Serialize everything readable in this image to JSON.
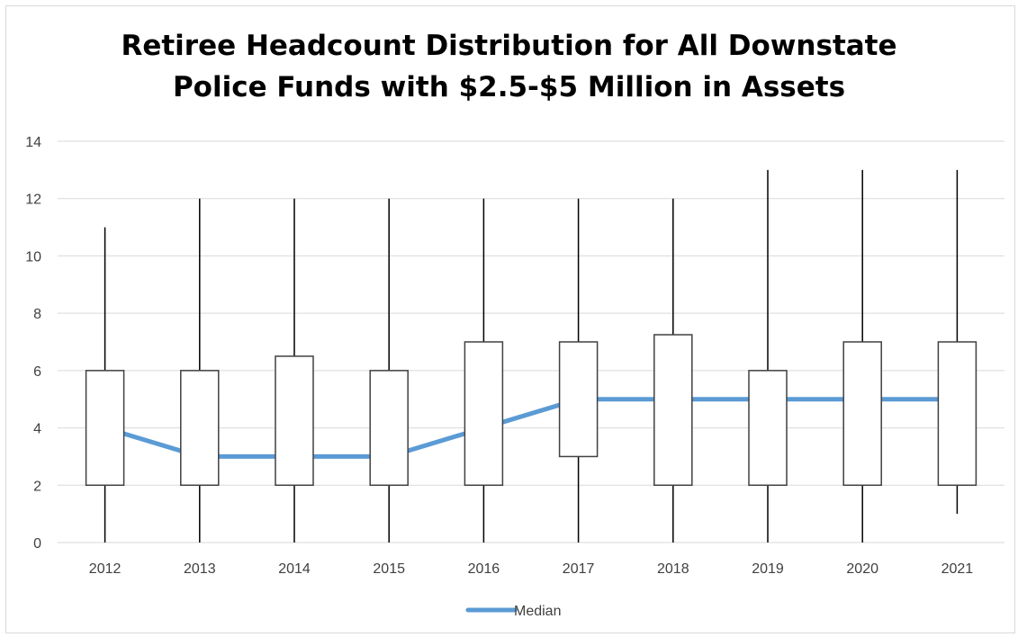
{
  "chart_data": {
    "type": "box",
    "title_lines": [
      "Retiree Headcount Distribution for All Downstate",
      "Police Funds with $2.5-$5 Million in Assets"
    ],
    "categories": [
      "2012",
      "2013",
      "2014",
      "2015",
      "2016",
      "2017",
      "2018",
      "2019",
      "2020",
      "2021"
    ],
    "boxes": [
      {
        "min": 0,
        "q1": 2,
        "q3": 6,
        "max": 11
      },
      {
        "min": 0,
        "q1": 2,
        "q3": 6,
        "max": 12
      },
      {
        "min": 0,
        "q1": 2,
        "q3": 6.5,
        "max": 12
      },
      {
        "min": 0,
        "q1": 2,
        "q3": 6,
        "max": 12
      },
      {
        "min": 0,
        "q1": 2,
        "q3": 7,
        "max": 12
      },
      {
        "min": 0,
        "q1": 3,
        "q3": 7,
        "max": 12
      },
      {
        "min": 0,
        "q1": 2,
        "q3": 7.25,
        "max": 12
      },
      {
        "min": 0,
        "q1": 2,
        "q3": 6,
        "max": 13
      },
      {
        "min": 0,
        "q1": 2,
        "q3": 7,
        "max": 13
      },
      {
        "min": 1,
        "q1": 2,
        "q3": 7,
        "max": 13
      }
    ],
    "series": [
      {
        "name": "Median",
        "values": [
          4,
          3,
          3,
          3,
          4,
          5,
          5,
          5,
          5,
          5
        ],
        "color": "#5b9bd5"
      }
    ],
    "ylim": [
      0,
      14
    ],
    "yticks": [
      "0",
      "2",
      "4",
      "6",
      "8",
      "10",
      "12",
      "14"
    ],
    "grid": true,
    "legend_position": "bottom",
    "colors": {
      "gridline": "#d9d9d9",
      "box_stroke": "#404040",
      "whisker": "#000000",
      "tick_text": "#404040"
    }
  }
}
